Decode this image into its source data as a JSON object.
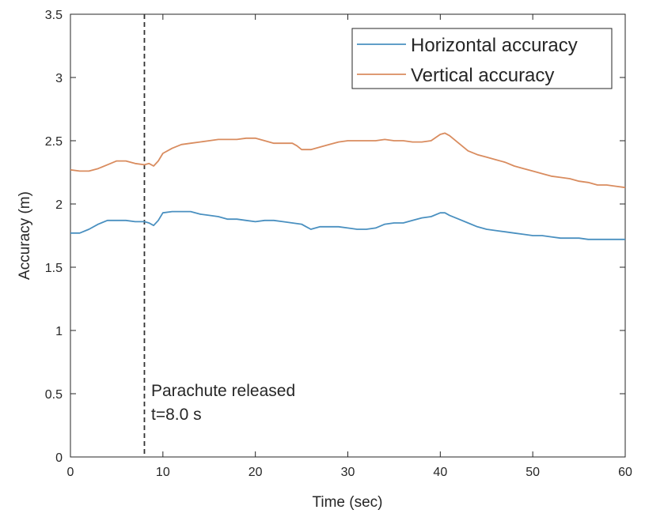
{
  "chart_data": {
    "type": "line",
    "title": "",
    "xlabel": "Time (sec)",
    "ylabel": "Accuracy (m)",
    "xlim": [
      0,
      60
    ],
    "ylim": [
      0,
      3.5
    ],
    "xticks": [
      0,
      10,
      20,
      30,
      40,
      50,
      60
    ],
    "yticks": [
      0,
      0.5,
      1,
      1.5,
      2,
      2.5,
      3,
      3.5
    ],
    "xtick_labels": [
      "0",
      "10",
      "20",
      "30",
      "40",
      "50",
      "60"
    ],
    "ytick_labels": [
      "0",
      "0.5",
      "1",
      "1.5",
      "2",
      "2.5",
      "3",
      "3.5"
    ],
    "grid": false,
    "legend_position": "top-right",
    "series": [
      {
        "name": "Horizontal accuracy",
        "color": "#4a90c0",
        "x": [
          0,
          1,
          2,
          3,
          4,
          5,
          6,
          7,
          8,
          8.5,
          9,
          9.5,
          10,
          11,
          12,
          13,
          14,
          15,
          16,
          17,
          18,
          19,
          20,
          21,
          22,
          23,
          24,
          25,
          25.5,
          26,
          27,
          28,
          29,
          30,
          31,
          32,
          33,
          34,
          35,
          36,
          37,
          38,
          39,
          40,
          40.5,
          41,
          42,
          43,
          44,
          45,
          46,
          47,
          48,
          49,
          50,
          51,
          52,
          53,
          54,
          55,
          56,
          57,
          58,
          59,
          60
        ],
        "values": [
          1.77,
          1.77,
          1.8,
          1.84,
          1.87,
          1.87,
          1.87,
          1.86,
          1.86,
          1.85,
          1.83,
          1.87,
          1.93,
          1.94,
          1.94,
          1.94,
          1.92,
          1.91,
          1.9,
          1.88,
          1.88,
          1.87,
          1.86,
          1.87,
          1.87,
          1.86,
          1.85,
          1.84,
          1.82,
          1.8,
          1.82,
          1.82,
          1.82,
          1.81,
          1.8,
          1.8,
          1.81,
          1.84,
          1.85,
          1.85,
          1.87,
          1.89,
          1.9,
          1.93,
          1.93,
          1.91,
          1.88,
          1.85,
          1.82,
          1.8,
          1.79,
          1.78,
          1.77,
          1.76,
          1.75,
          1.75,
          1.74,
          1.73,
          1.73,
          1.73,
          1.72,
          1.72,
          1.72,
          1.72,
          1.72
        ]
      },
      {
        "name": "Vertical accuracy",
        "color": "#d98c5f",
        "x": [
          0,
          1,
          2,
          3,
          4,
          5,
          6,
          7,
          8,
          8.5,
          9,
          9.5,
          10,
          11,
          12,
          13,
          14,
          15,
          16,
          17,
          18,
          19,
          20,
          21,
          22,
          23,
          24,
          24.5,
          25,
          26,
          27,
          28,
          29,
          30,
          31,
          32,
          33,
          34,
          35,
          36,
          37,
          38,
          39,
          40,
          40.5,
          41,
          42,
          43,
          44,
          45,
          46,
          47,
          48,
          49,
          50,
          51,
          52,
          53,
          54,
          55,
          56,
          57,
          58,
          59,
          60
        ],
        "values": [
          2.27,
          2.26,
          2.26,
          2.28,
          2.31,
          2.34,
          2.34,
          2.32,
          2.31,
          2.32,
          2.3,
          2.34,
          2.4,
          2.44,
          2.47,
          2.48,
          2.49,
          2.5,
          2.51,
          2.51,
          2.51,
          2.52,
          2.52,
          2.5,
          2.48,
          2.48,
          2.48,
          2.46,
          2.43,
          2.43,
          2.45,
          2.47,
          2.49,
          2.5,
          2.5,
          2.5,
          2.5,
          2.51,
          2.5,
          2.5,
          2.49,
          2.49,
          2.5,
          2.55,
          2.56,
          2.54,
          2.48,
          2.42,
          2.39,
          2.37,
          2.35,
          2.33,
          2.3,
          2.28,
          2.26,
          2.24,
          2.22,
          2.21,
          2.2,
          2.18,
          2.17,
          2.15,
          2.15,
          2.14,
          2.13
        ]
      }
    ],
    "vline": {
      "x": 8.0,
      "color": "#333333"
    },
    "annotation": {
      "line1": "Parachute released",
      "line2": "t=8.0 s"
    }
  }
}
